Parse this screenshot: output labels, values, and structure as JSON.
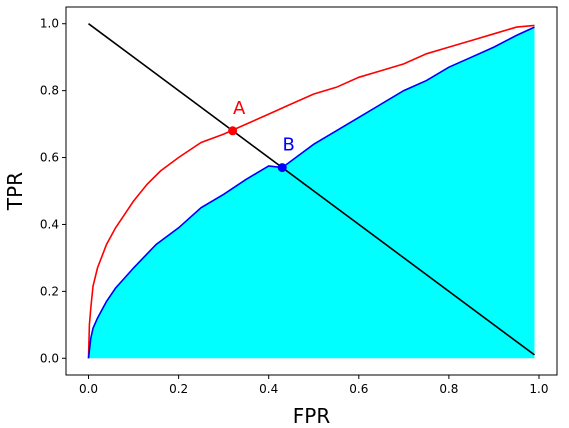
{
  "chart_data": {
    "type": "line",
    "title": "",
    "xlabel": "FPR",
    "ylabel": "TPR",
    "xlim": [
      -0.05,
      1.04
    ],
    "ylim": [
      -0.05,
      1.05
    ],
    "grid": false,
    "xticks": [
      {
        "value": 0.0,
        "label": "0.0"
      },
      {
        "value": 0.2,
        "label": "0.2"
      },
      {
        "value": 0.4,
        "label": "0.4"
      },
      {
        "value": 0.6,
        "label": "0.6"
      },
      {
        "value": 0.8,
        "label": "0.8"
      },
      {
        "value": 1.0,
        "label": "1.0"
      }
    ],
    "yticks": [
      {
        "value": 0.0,
        "label": "0.0"
      },
      {
        "value": 0.2,
        "label": "0.2"
      },
      {
        "value": 0.4,
        "label": "0.4"
      },
      {
        "value": 0.6,
        "label": "0.6"
      },
      {
        "value": 0.8,
        "label": "0.8"
      },
      {
        "value": 1.0,
        "label": "1.0"
      }
    ],
    "series": [
      {
        "color": "#ff0000",
        "x": [
          0.0,
          0.002,
          0.005,
          0.01,
          0.02,
          0.04,
          0.06,
          0.08,
          0.1,
          0.13,
          0.16,
          0.2,
          0.25,
          0.3,
          0.35,
          0.4,
          0.45,
          0.5,
          0.55,
          0.6,
          0.65,
          0.7,
          0.75,
          0.8,
          0.85,
          0.9,
          0.95,
          0.99
        ],
        "y": [
          0.0,
          0.1,
          0.15,
          0.215,
          0.27,
          0.34,
          0.39,
          0.43,
          0.47,
          0.52,
          0.56,
          0.6,
          0.645,
          0.67,
          0.7,
          0.73,
          0.76,
          0.79,
          0.81,
          0.84,
          0.86,
          0.88,
          0.91,
          0.93,
          0.95,
          0.97,
          0.99,
          0.995
        ]
      },
      {
        "color": "#0000ff",
        "fill": "#00ffff",
        "x": [
          0.0,
          0.005,
          0.01,
          0.02,
          0.04,
          0.06,
          0.08,
          0.1,
          0.15,
          0.2,
          0.25,
          0.3,
          0.35,
          0.4,
          0.43,
          0.5,
          0.55,
          0.6,
          0.65,
          0.7,
          0.75,
          0.8,
          0.85,
          0.9,
          0.95,
          0.99
        ],
        "y": [
          0.0,
          0.06,
          0.09,
          0.12,
          0.17,
          0.21,
          0.24,
          0.27,
          0.34,
          0.39,
          0.45,
          0.49,
          0.535,
          0.575,
          0.57,
          0.64,
          0.68,
          0.72,
          0.76,
          0.8,
          0.83,
          0.87,
          0.9,
          0.93,
          0.965,
          0.99
        ]
      },
      {
        "color": "#000000",
        "x": [
          0.0,
          0.99
        ],
        "y": [
          1.0,
          0.01
        ]
      }
    ],
    "points": [
      {
        "label": "A",
        "x": 0.32,
        "y": 0.68,
        "color": "#ff0000"
      },
      {
        "label": "B",
        "x": 0.43,
        "y": 0.57,
        "color": "#0000ff"
      }
    ]
  }
}
